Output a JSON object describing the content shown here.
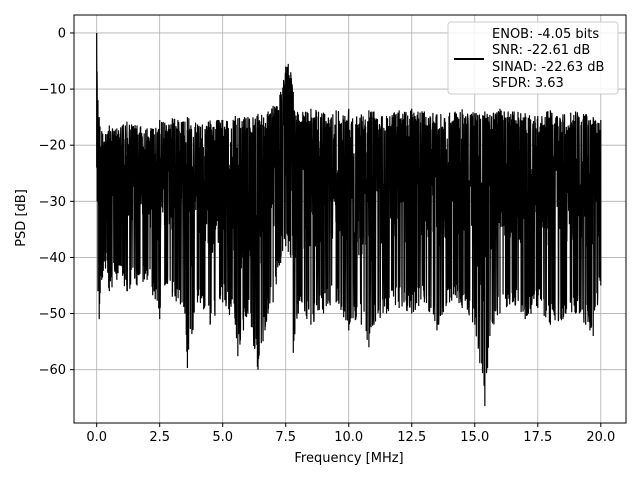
{
  "chart_data": {
    "type": "line",
    "title": "",
    "xlabel": "Frequency [MHz]",
    "ylabel": "PSD [dB]",
    "xlim": [
      -0.9,
      21.0
    ],
    "ylim": [
      -69.5,
      3.2
    ],
    "xticks": [
      0.0,
      2.5,
      5.0,
      7.5,
      10.0,
      12.5,
      15.0,
      17.5,
      20.0
    ],
    "xtick_labels": [
      "0.0",
      "2.5",
      "5.0",
      "7.5",
      "10.0",
      "12.5",
      "15.0",
      "17.5",
      "20.0"
    ],
    "yticks": [
      0,
      -10,
      -20,
      -30,
      -40,
      -50,
      -60
    ],
    "ytick_labels": [
      "0",
      "−10",
      "−20",
      "−30",
      "−40",
      "−50",
      "−60"
    ],
    "grid": true,
    "legend_position": "top-right",
    "legend_entries": [
      "ENOB: -4.05 bits",
      "SNR: -22.61 dB",
      "SINAD: -22.63 dB",
      "SFDR: 3.63"
    ],
    "series_color": "#000000",
    "series": [
      {
        "x": [
          0.0,
          0.02,
          0.05,
          0.1,
          0.2,
          0.35,
          0.5,
          0.8,
          1.2,
          1.6,
          2.0,
          2.5,
          2.7,
          3.0,
          3.5,
          3.6,
          4.0,
          4.5,
          5.0,
          5.5,
          5.6,
          6.0,
          6.4,
          6.8,
          7.0,
          7.3,
          7.5,
          7.6,
          7.7,
          7.8,
          8.0,
          8.5,
          9.0,
          9.5,
          10.0,
          10.5,
          10.8,
          11.0,
          11.5,
          12.0,
          12.5,
          13.0,
          13.5,
          14.0,
          14.5,
          15.0,
          15.4,
          15.6,
          16.0,
          16.5,
          17.0,
          17.5,
          18.0,
          18.5,
          19.0,
          19.4,
          19.7,
          20.0
        ],
        "upper": [
          0.0,
          -9.0,
          -12.0,
          -15.0,
          -17.5,
          -18.0,
          -16.5,
          -17.0,
          -15.8,
          -16.5,
          -17.0,
          -15.5,
          -16.0,
          -15.2,
          -15.8,
          -15.0,
          -16.3,
          -15.6,
          -15.5,
          -14.8,
          -15.2,
          -15.0,
          -14.5,
          -14.0,
          -13.0,
          -10.5,
          -6.0,
          -5.5,
          -7.0,
          -10.5,
          -14.5,
          -13.5,
          -14.2,
          -13.8,
          -13.5,
          -14.5,
          -13.8,
          -14.0,
          -14.8,
          -13.8,
          -13.5,
          -14.0,
          -14.5,
          -14.2,
          -13.6,
          -14.3,
          -14.0,
          -14.6,
          -13.5,
          -14.0,
          -14.3,
          -14.8,
          -13.8,
          -14.5,
          -14.0,
          -14.5,
          -15.0,
          -15.5
        ],
        "lower": [
          -24.0,
          -30.0,
          -46.0,
          -51.0,
          -44.0,
          -42.0,
          -46.0,
          -44.0,
          -46.0,
          -45.0,
          -44.0,
          -51.0,
          -45.0,
          -47.0,
          -50.0,
          -59.7,
          -48.0,
          -52.0,
          -48.0,
          -52.0,
          -57.6,
          -50.0,
          -60.0,
          -50.0,
          -48.0,
          -41.0,
          -38.0,
          -39.0,
          -40.0,
          -57.0,
          -50.0,
          -52.0,
          -50.0,
          -48.0,
          -53.0,
          -52.0,
          -56.0,
          -52.0,
          -50.0,
          -49.0,
          -50.0,
          -48.0,
          -53.0,
          -48.0,
          -49.0,
          -52.0,
          -66.5,
          -54.0,
          -50.0,
          -48.0,
          -51.0,
          -49.0,
          -52.0,
          -51.0,
          -50.0,
          -52.0,
          -54.0,
          -45.0
        ]
      }
    ]
  }
}
